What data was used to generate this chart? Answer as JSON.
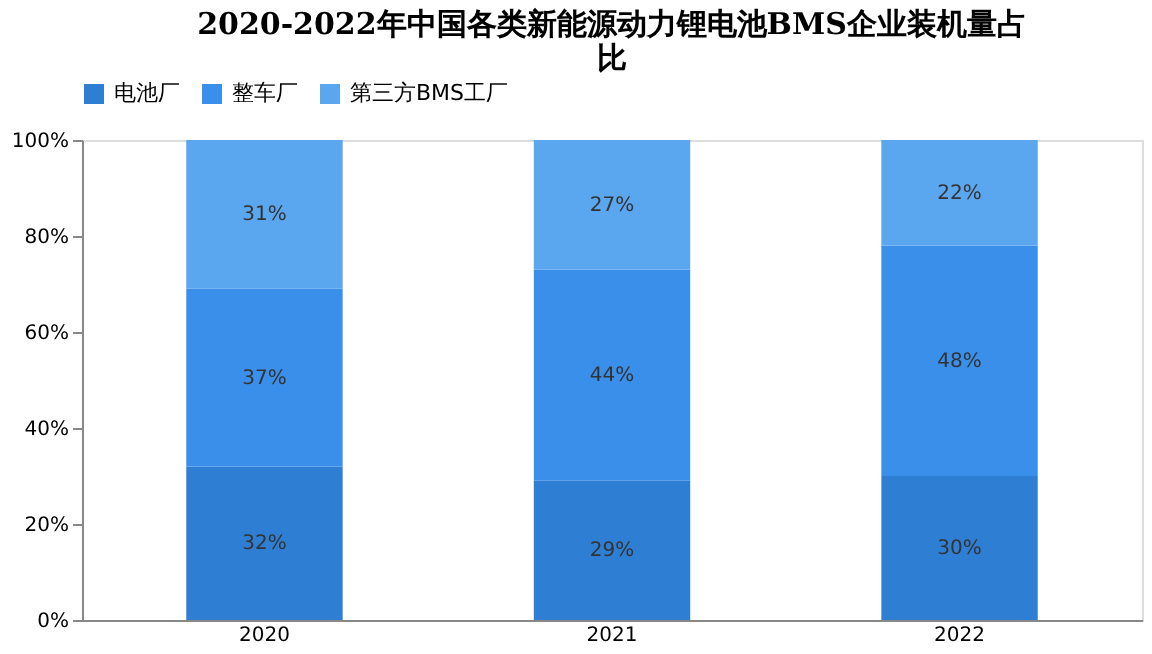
{
  "chart_data": {
    "type": "bar",
    "title": "2020-2022年中国各类新能源动力锂电池BMS企业装机量占比",
    "categories": [
      "2020",
      "2021",
      "2022"
    ],
    "stacked": true,
    "series": [
      {
        "name": "电池厂",
        "color": "#2e7fd4",
        "values": [
          32,
          29,
          30
        ],
        "value_labels": [
          "32%",
          "29%",
          "30%"
        ]
      },
      {
        "name": "整车厂",
        "color": "#3a8fea",
        "values": [
          37,
          44,
          48
        ],
        "value_labels": [
          "37%",
          "44%",
          "48%"
        ]
      },
      {
        "name": "第三方BMS工厂",
        "color": "#5aa6ef",
        "values": [
          31,
          27,
          22
        ],
        "value_labels": [
          "31%",
          "27%",
          "22%"
        ]
      }
    ],
    "ylim": [
      0,
      100
    ],
    "yticks": [
      {
        "value": 0,
        "label": "0%"
      },
      {
        "value": 20,
        "label": "20%"
      },
      {
        "value": 40,
        "label": "40%"
      },
      {
        "value": 60,
        "label": "60%"
      },
      {
        "value": 80,
        "label": "80%"
      },
      {
        "value": 100,
        "label": "100%"
      }
    ],
    "grid": false,
    "legend": "top"
  }
}
